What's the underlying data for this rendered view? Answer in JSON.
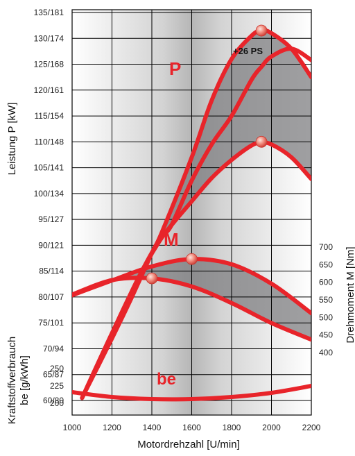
{
  "chart_data": {
    "type": "line",
    "title": "",
    "xlabel": "Motordrehzahl [U/min]",
    "x_ticks": [
      "1000",
      "1200",
      "1400",
      "1600",
      "1800",
      "2000",
      "2200"
    ],
    "xlim": [
      1000,
      2200
    ],
    "panels": {
      "power": {
        "ylabel": "Leistung P [kW]",
        "ylim": [
          57.5,
          135
        ],
        "y_ticks": [
          "60/80",
          "65/87",
          "70/94",
          "75/101",
          "80/107",
          "85/114",
          "90/121",
          "95/127",
          "100/134",
          "105/141",
          "110/148",
          "115/154",
          "120/161",
          "125/168",
          "130/174",
          "135/181"
        ],
        "y_tick_values": [
          60,
          65,
          70,
          75,
          80,
          85,
          90,
          95,
          100,
          105,
          110,
          115,
          120,
          125,
          130,
          135
        ],
        "label": "P",
        "annotation": "+26 PS",
        "series": [
          {
            "x": [
              1050,
              1200,
              1350,
              1450,
              1500,
              1600,
              1700,
              1800,
              1900,
              1950,
              2000,
              2100,
              2200
            ],
            "y": [
              60.5,
              73,
              85,
              91.5,
              94,
              102.5,
              109.5,
              115,
              122,
              124.5,
              126.5,
              128,
              125.8
            ]
          },
          {
            "x": [
              1050,
              1200,
              1350,
              1450,
              1600,
              1700,
              1800,
              1900,
              1950,
              2000,
              2100,
              2200
            ],
            "y": [
              60.5,
              73,
              85,
              91.5,
              98.5,
              103,
              106.5,
              109.3,
              109.8,
              109.5,
              107,
              102.8
            ]
          },
          {
            "x": [
              1050,
              1200,
              1300,
              1400,
              1450,
              1600,
              1700,
              1800,
              1900,
              1950,
              2000,
              2100,
              2200
            ],
            "y": [
              60.5,
              72,
              80,
              88.5,
              92.5,
              107,
              118,
              126,
              130.5,
              131.5,
              131,
              128,
              122.5
            ]
          }
        ],
        "markers": [
          {
            "x": 1950,
            "y": 131.5
          },
          {
            "x": 1950,
            "y": 110
          }
        ]
      },
      "torque": {
        "ylabel": "Drehmoment M [Nm]",
        "ylim": [
          400,
          700
        ],
        "y_ticks": [
          "400",
          "450",
          "500",
          "550",
          "600",
          "650",
          "700"
        ],
        "y_tick_values": [
          400,
          450,
          500,
          550,
          600,
          650,
          700
        ],
        "label": "M",
        "series": [
          {
            "x": [
              1000,
              1200,
              1400,
              1600,
              1800,
              2000,
              2200
            ],
            "y": [
              565,
              606,
              611,
              588,
              541,
              484,
              437
            ]
          },
          {
            "x": [
              1000,
              1200,
              1400,
              1600,
              1800,
              2000,
              2200
            ],
            "y": [
              563,
              605,
              645,
              666,
              651,
              596,
              512
            ]
          }
        ],
        "markers": [
          {
            "x": 1400,
            "y": 611
          },
          {
            "x": 1600,
            "y": 666
          }
        ]
      },
      "fuel": {
        "ylabel": "Kraftstoffverbrauch be [g/kWh]",
        "ylim": [
          190,
          260
        ],
        "y_ticks": [
          "200",
          "225",
          "250"
        ],
        "y_tick_values": [
          200,
          225,
          250
        ],
        "label": "be",
        "series": [
          {
            "x": [
              1000,
              1200,
              1400,
              1600,
              1800,
              2000,
              2200
            ],
            "y": [
              216,
              209,
              206,
              206,
              209,
              215,
              225
            ]
          }
        ]
      }
    },
    "colors": {
      "curve": "#e8242a",
      "shade": "#7f7f82",
      "grid": "#000000",
      "marker": "#f08a7c"
    }
  }
}
